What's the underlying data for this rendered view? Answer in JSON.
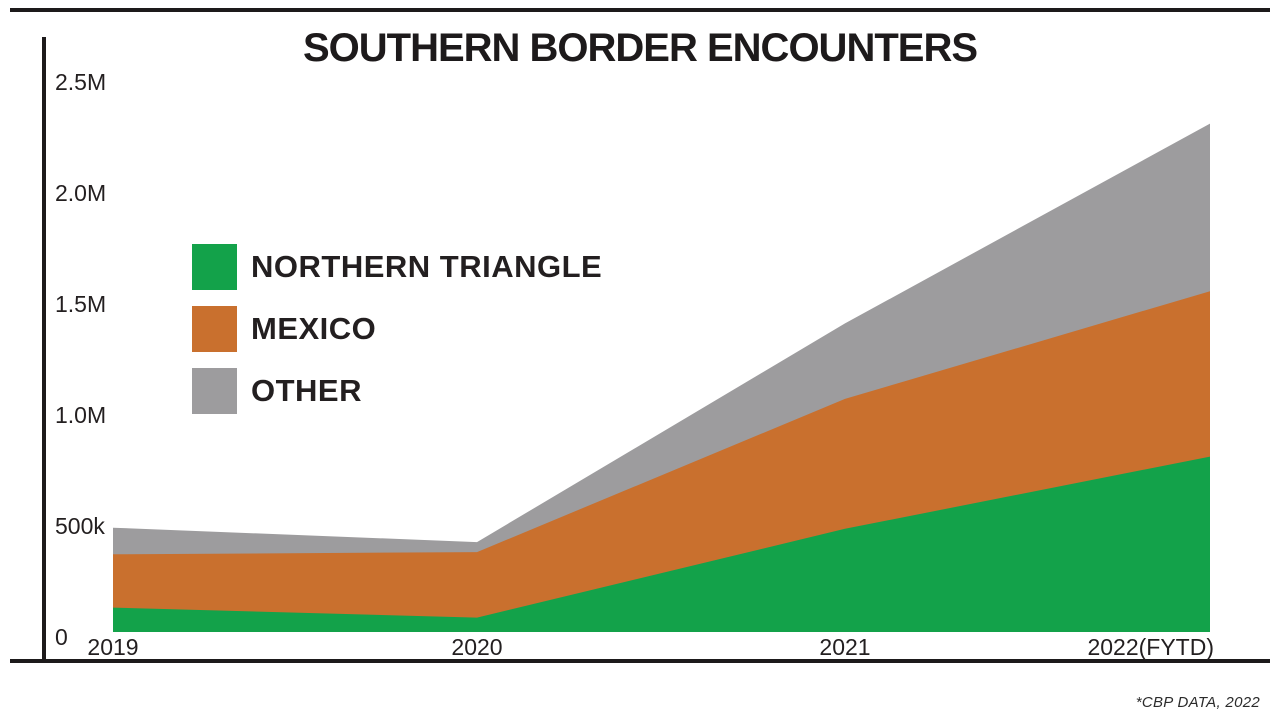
{
  "title": "SOUTHERN BORDER ENCOUNTERS",
  "source_note": "*CBP DATA, 2022",
  "colors": {
    "northern_triangle": "#13a24a",
    "mexico": "#c9702e",
    "other": "#9d9c9e",
    "axis": "#1d1a1b"
  },
  "legend": {
    "items": [
      {
        "label": "NORTHERN TRIANGLE",
        "color_key": "northern_triangle"
      },
      {
        "label": "MEXICO",
        "color_key": "mexico"
      },
      {
        "label": "OTHER",
        "color_key": "other"
      }
    ]
  },
  "axis": {
    "y_ticks": [
      {
        "value_k": 2500,
        "label": "2.5M"
      },
      {
        "value_k": 2000,
        "label": "2.0M"
      },
      {
        "value_k": 1500,
        "label": "1.5M"
      },
      {
        "value_k": 1000,
        "label": "1.0M"
      },
      {
        "value_k": 500,
        "label": "500k"
      },
      {
        "value_k": 0,
        "label": "0"
      }
    ],
    "x_ticks": [
      "2019",
      "2020",
      "2021",
      "2022(FYTD)"
    ]
  },
  "chart_data": {
    "type": "area",
    "stacked": true,
    "title": "SOUTHERN BORDER ENCOUNTERS",
    "x": [
      "2019",
      "2020",
      "2021",
      "2022(FYTD)"
    ],
    "values_unit": "thousands of encounters",
    "series": [
      {
        "name": "NORTHERN TRIANGLE",
        "color": "#13a24a",
        "values_k": [
          110,
          65,
          465,
          790
        ]
      },
      {
        "name": "MEXICO",
        "color": "#c9702e",
        "values_k": [
          240,
          295,
          585,
          745
        ]
      },
      {
        "name": "OTHER",
        "color": "#9d9c9e",
        "values_k": [
          120,
          45,
          340,
          755
        ]
      }
    ],
    "stacked_totals_k": [
      470,
      405,
      1390,
      2290
    ],
    "ylim_k": [
      0,
      2500
    ],
    "y_tick_interval_k": 500,
    "grid": false,
    "legend_position": "upper-left-inside",
    "annotation": "*CBP DATA, 2022"
  }
}
